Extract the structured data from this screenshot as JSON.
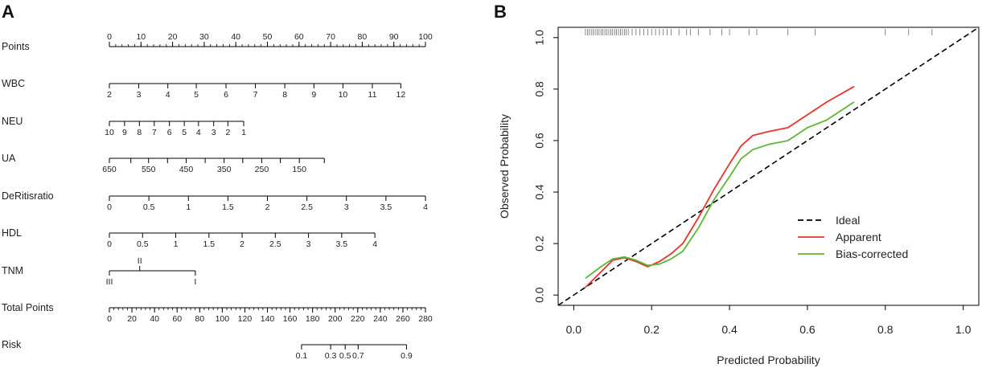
{
  "figure": {
    "panel_a_letter": "A",
    "panel_b_letter": "B"
  },
  "chart_data": [
    {
      "type": "nomogram",
      "panel": "A",
      "rows": [
        {
          "id": "points",
          "label": "Points",
          "tick_side": "top",
          "ticks": [
            {
              "label": "0",
              "score": 0
            },
            {
              "label": "10",
              "score": 10
            },
            {
              "label": "20",
              "score": 20
            },
            {
              "label": "30",
              "score": 30
            },
            {
              "label": "40",
              "score": 40
            },
            {
              "label": "50",
              "score": 50
            },
            {
              "label": "60",
              "score": 60
            },
            {
              "label": "70",
              "score": 70
            },
            {
              "label": "80",
              "score": 80
            },
            {
              "label": "90",
              "score": 90
            },
            {
              "label": "100",
              "score": 100
            }
          ],
          "minor_step": 2
        },
        {
          "id": "wbc",
          "label": "WBC",
          "tick_side": "bottom",
          "ticks": [
            {
              "label": "2",
              "score": 0
            },
            {
              "label": "3",
              "score": 9.3
            },
            {
              "label": "4",
              "score": 18.5
            },
            {
              "label": "5",
              "score": 27.5
            },
            {
              "label": "6",
              "score": 36.9
            },
            {
              "label": "7",
              "score": 46.2
            },
            {
              "label": "8",
              "score": 55.5
            },
            {
              "label": "9",
              "score": 64.7
            },
            {
              "label": "10",
              "score": 73.9
            },
            {
              "label": "11",
              "score": 83.2
            },
            {
              "label": "12",
              "score": 92.2
            }
          ]
        },
        {
          "id": "neu",
          "label": "NEU",
          "tick_side": "bottom",
          "ticks": [
            {
              "label": "10",
              "score": 0
            },
            {
              "label": "9",
              "score": 4.8
            },
            {
              "label": "8",
              "score": 9.5
            },
            {
              "label": "7",
              "score": 14.2
            },
            {
              "label": "6",
              "score": 19.0
            },
            {
              "label": "5",
              "score": 23.7
            },
            {
              "label": "4",
              "score": 28.2
            },
            {
              "label": "3",
              "score": 33.0
            },
            {
              "label": "2",
              "score": 37.5
            },
            {
              "label": "1",
              "score": 42.5
            }
          ]
        },
        {
          "id": "ua",
          "label": "UA",
          "tick_side": "bottom",
          "ticks": [
            {
              "label": "650",
              "score": 0
            },
            {
              "label": "",
              "score": 6.8
            },
            {
              "label": "550",
              "score": 12.4
            },
            {
              "label": "",
              "score": 18.4
            },
            {
              "label": "450",
              "score": 24.3
            },
            {
              "label": "",
              "score": 30.3
            },
            {
              "label": "350",
              "score": 36.3
            },
            {
              "label": "",
              "score": 42.2
            },
            {
              "label": "250",
              "score": 48.2
            },
            {
              "label": "",
              "score": 54.1
            },
            {
              "label": "150",
              "score": 60.1
            },
            {
              "label": "",
              "score": 68.0
            }
          ]
        },
        {
          "id": "deritis",
          "label": "DeRitisratio",
          "tick_side": "bottom",
          "ticks": [
            {
              "label": "0",
              "score": 0
            },
            {
              "label": "0.5",
              "score": 12.5
            },
            {
              "label": "1",
              "score": 25
            },
            {
              "label": "1.5",
              "score": 37.5
            },
            {
              "label": "2",
              "score": 50
            },
            {
              "label": "2.5",
              "score": 62.5
            },
            {
              "label": "3",
              "score": 75
            },
            {
              "label": "3.5",
              "score": 87.5
            },
            {
              "label": "4",
              "score": 100
            }
          ]
        },
        {
          "id": "hdl",
          "label": "HDL",
          "tick_side": "bottom",
          "ticks": [
            {
              "label": "0",
              "score": 0
            },
            {
              "label": "0.5",
              "score": 10.5
            },
            {
              "label": "1",
              "score": 21
            },
            {
              "label": "1.5",
              "score": 31.5
            },
            {
              "label": "2",
              "score": 42
            },
            {
              "label": "2.5",
              "score": 52.5
            },
            {
              "label": "3",
              "score": 63
            },
            {
              "label": "3.5",
              "score": 73.5
            },
            {
              "label": "4",
              "score": 84
            }
          ]
        },
        {
          "id": "tnm",
          "label": "TNM",
          "tick_side": "mixed",
          "ticks": [
            {
              "label": "III",
              "score": 0,
              "side": "bottom"
            },
            {
              "label": "II",
              "score": 9.6,
              "side": "top"
            },
            {
              "label": "I",
              "score": 27.2,
              "side": "bottom"
            }
          ]
        },
        {
          "id": "total",
          "label": "Total Points",
          "tick_side": "bottom",
          "ticks": [
            {
              "label": "0",
              "score": 0
            },
            {
              "label": "20",
              "score": 7.14
            },
            {
              "label": "40",
              "score": 14.29
            },
            {
              "label": "60",
              "score": 21.43
            },
            {
              "label": "80",
              "score": 28.57
            },
            {
              "label": "100",
              "score": 35.71
            },
            {
              "label": "120",
              "score": 42.86
            },
            {
              "label": "140",
              "score": 50
            },
            {
              "label": "160",
              "score": 57.14
            },
            {
              "label": "180",
              "score": 64.29
            },
            {
              "label": "200",
              "score": 71.43
            },
            {
              "label": "220",
              "score": 78.57
            },
            {
              "label": "240",
              "score": 85.71
            },
            {
              "label": "260",
              "score": 92.86
            },
            {
              "label": "280",
              "score": 100
            }
          ],
          "minor_step": 1.4286
        },
        {
          "id": "risk",
          "label": "Risk",
          "tick_side": "bottom",
          "ticks": [
            {
              "label": "0.1",
              "score": 60.8
            },
            {
              "label": "0.3",
              "score": 70.0
            },
            {
              "label": "0.5",
              "score": 74.6
            },
            {
              "label": "0.7",
              "score": 78.7
            },
            {
              "label": "0.9",
              "score": 94.0
            }
          ]
        }
      ]
    },
    {
      "type": "line",
      "panel": "B",
      "title": "",
      "xlabel": "Predicted Probability",
      "ylabel": "Observed Probability",
      "xlim": [
        -0.04,
        1.04
      ],
      "ylim": [
        -0.04,
        1.04
      ],
      "xticks": [
        {
          "value": 0,
          "label": "0.0"
        },
        {
          "value": 0.2,
          "label": "0.2"
        },
        {
          "value": 0.4,
          "label": "0.4"
        },
        {
          "value": 0.6,
          "label": "0.6"
        },
        {
          "value": 0.8,
          "label": "0.8"
        },
        {
          "value": 1.0,
          "label": "1.0"
        }
      ],
      "yticks": [
        {
          "value": 0,
          "label": "0.0"
        },
        {
          "value": 0.2,
          "label": "0.2"
        },
        {
          "value": 0.4,
          "label": "0.4"
        },
        {
          "value": 0.6,
          "label": "0.6"
        },
        {
          "value": 0.8,
          "label": "0.8"
        },
        {
          "value": 1.0,
          "label": "1.0"
        }
      ],
      "legend": {
        "position": "right-middle"
      },
      "series": [
        {
          "name": "Ideal",
          "color": "#000000",
          "style": "dashed",
          "x": [
            -0.04,
            1.04
          ],
          "y": [
            -0.04,
            1.04
          ]
        },
        {
          "name": "Apparent",
          "color": "#e8332a",
          "style": "solid",
          "x": [
            0.03,
            0.07,
            0.1,
            0.13,
            0.16,
            0.19,
            0.22,
            0.25,
            0.28,
            0.32,
            0.36,
            0.4,
            0.43,
            0.46,
            0.5,
            0.55,
            0.6,
            0.65,
            0.72
          ],
          "y": [
            0.03,
            0.09,
            0.135,
            0.145,
            0.13,
            0.11,
            0.13,
            0.16,
            0.2,
            0.3,
            0.41,
            0.51,
            0.58,
            0.62,
            0.635,
            0.65,
            0.7,
            0.75,
            0.81
          ]
        },
        {
          "name": "Bias-corrected",
          "color": "#5bb832",
          "style": "solid",
          "x": [
            0.03,
            0.07,
            0.1,
            0.13,
            0.16,
            0.19,
            0.22,
            0.25,
            0.28,
            0.32,
            0.36,
            0.4,
            0.43,
            0.46,
            0.5,
            0.55,
            0.6,
            0.65,
            0.72
          ],
          "y": [
            0.065,
            0.11,
            0.14,
            0.148,
            0.135,
            0.115,
            0.12,
            0.14,
            0.17,
            0.26,
            0.37,
            0.46,
            0.53,
            0.565,
            0.585,
            0.6,
            0.65,
            0.68,
            0.75
          ]
        }
      ],
      "rug": [
        0.03,
        0.035,
        0.04,
        0.045,
        0.05,
        0.055,
        0.06,
        0.065,
        0.07,
        0.075,
        0.08,
        0.085,
        0.09,
        0.095,
        0.1,
        0.105,
        0.11,
        0.115,
        0.12,
        0.125,
        0.13,
        0.135,
        0.14,
        0.15,
        0.16,
        0.17,
        0.18,
        0.19,
        0.2,
        0.21,
        0.22,
        0.23,
        0.24,
        0.25,
        0.27,
        0.29,
        0.3,
        0.32,
        0.35,
        0.38,
        0.4,
        0.45,
        0.47,
        0.55,
        0.62,
        0.8,
        0.86,
        0.92
      ]
    }
  ]
}
